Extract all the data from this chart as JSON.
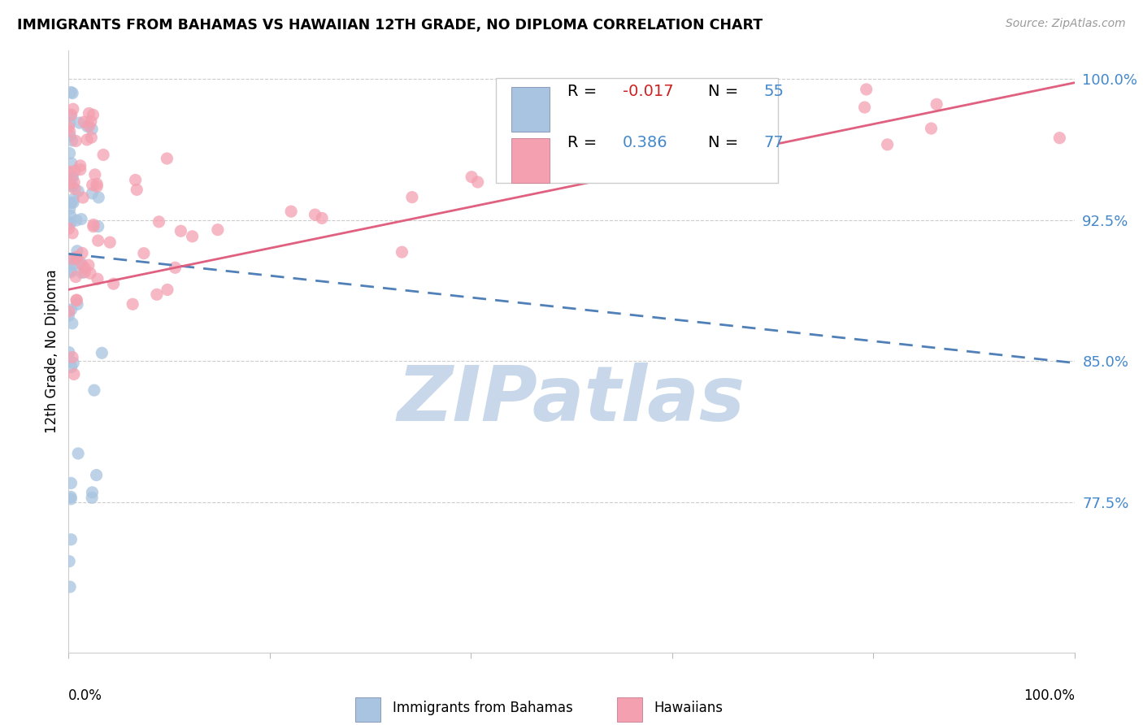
{
  "title": "IMMIGRANTS FROM BAHAMAS VS HAWAIIAN 12TH GRADE, NO DIPLOMA CORRELATION CHART",
  "source_text": "Source: ZipAtlas.com",
  "ylabel": "12th Grade, No Diploma",
  "color_bahamas": "#a8c4e0",
  "color_hawaiian": "#f4a0b0",
  "trendline_bahamas_color": "#5080b8",
  "trendline_hawaiian_color": "#e06080",
  "watermark_color": "#c8d8ea",
  "legend_r1_label": "R = ",
  "legend_r1_val": "-0.017",
  "legend_n1_label": "N = ",
  "legend_n1_val": "55",
  "legend_r2_label": "R = ",
  "legend_r2_val": "0.386",
  "legend_n2_label": "N = ",
  "legend_n2_val": "77",
  "r_val_color": "#cc2222",
  "n_val_color": "#4488cc",
  "r2_val_color": "#4488cc",
  "ytick_vals": [
    1.0,
    0.925,
    0.85,
    0.775
  ],
  "ytick_labels": [
    "100.0%",
    "92.5%",
    "85.0%",
    "77.5%"
  ],
  "ymin": 0.695,
  "ymax": 1.015,
  "xmin": 0.0,
  "xmax": 1.0,
  "bah_trend_x0": 0.0,
  "bah_trend_y0": 0.907,
  "bah_trend_x1": 1.0,
  "bah_trend_y1": 0.849,
  "haw_trend_x0": 0.0,
  "haw_trend_y0": 0.888,
  "haw_trend_x1": 1.0,
  "haw_trend_y1": 0.998
}
